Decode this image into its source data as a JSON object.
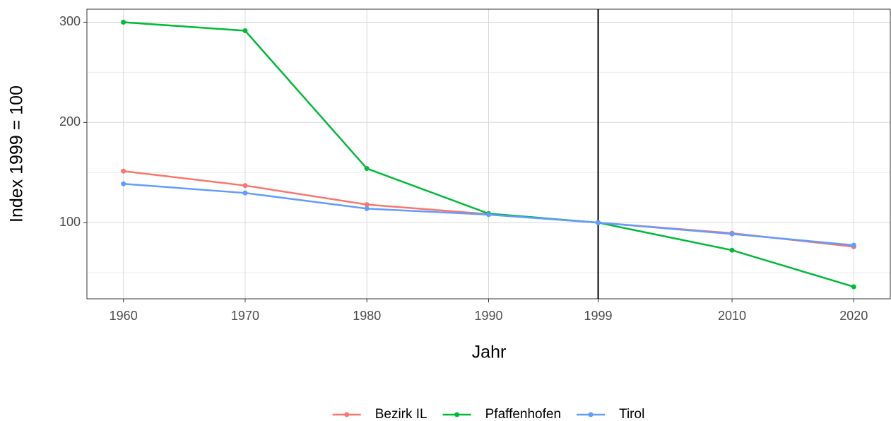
{
  "chart_data": {
    "type": "line",
    "x_label": "Jahr",
    "y_label": "Index 1999 = 100",
    "x": [
      1960,
      1970,
      1980,
      1990,
      1999,
      2010,
      2020
    ],
    "series": [
      {
        "name": "Bezirk IL",
        "color": "#F8766D",
        "values": [
          151.4,
          137,
          118,
          108.5,
          100,
          89.5,
          76
        ]
      },
      {
        "name": "Pfaffenhofen",
        "color": "#00BA38",
        "values": [
          300,
          291.5,
          154,
          109,
          100,
          72.5,
          36
        ]
      },
      {
        "name": "Tirol",
        "color": "#619CFF",
        "values": [
          138.7,
          129.6,
          114,
          108,
          100,
          88.7,
          77.5
        ]
      }
    ],
    "xlim": [
      1957,
      2023
    ],
    "ylim": [
      24,
      313
    ],
    "xticks": [
      1960,
      1970,
      1980,
      1990,
      1999,
      2010,
      2020
    ],
    "yticks": [
      100,
      200,
      300
    ],
    "yminor": [
      50,
      150,
      250
    ],
    "vline": 1999,
    "grid": true,
    "legend": "bottom"
  }
}
